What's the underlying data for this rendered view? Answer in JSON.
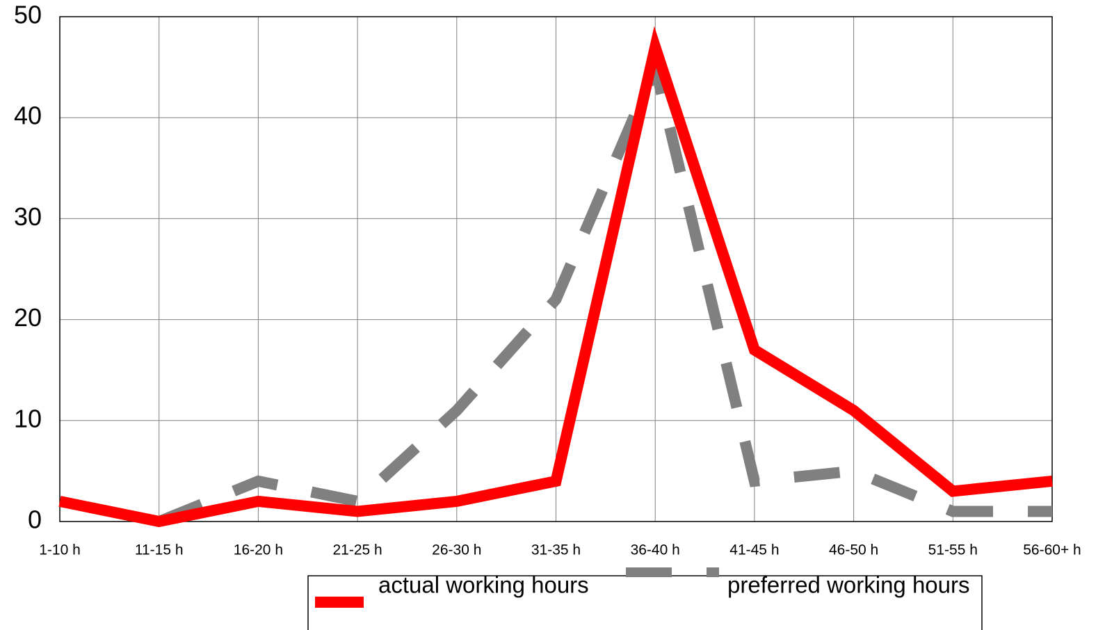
{
  "chart_data": {
    "type": "line",
    "title": "",
    "xlabel": "",
    "ylabel": "",
    "categories": [
      "1-10 h",
      "11-15 h",
      "16-20 h",
      "21-25 h",
      "26-30 h",
      "31-35 h",
      "36-40 h",
      "41-45 h",
      "46-50 h",
      "51-55 h",
      "56-60+ h"
    ],
    "ylim": [
      0,
      50
    ],
    "yticks": [
      "0",
      "10",
      "20",
      "30",
      "40",
      "50"
    ],
    "grid": true,
    "legend_position": "bottom",
    "series": [
      {
        "name": "actual working hours",
        "values": [
          2,
          0,
          2,
          1,
          2,
          4,
          47,
          17,
          11,
          3,
          4
        ],
        "color": "#ff0000",
        "style": "solid"
      },
      {
        "name": "preferred working hours",
        "values": [
          null,
          0,
          4,
          2,
          11,
          22,
          45,
          4,
          5,
          1,
          1
        ],
        "color": "#808080",
        "style": "dashed"
      }
    ]
  }
}
